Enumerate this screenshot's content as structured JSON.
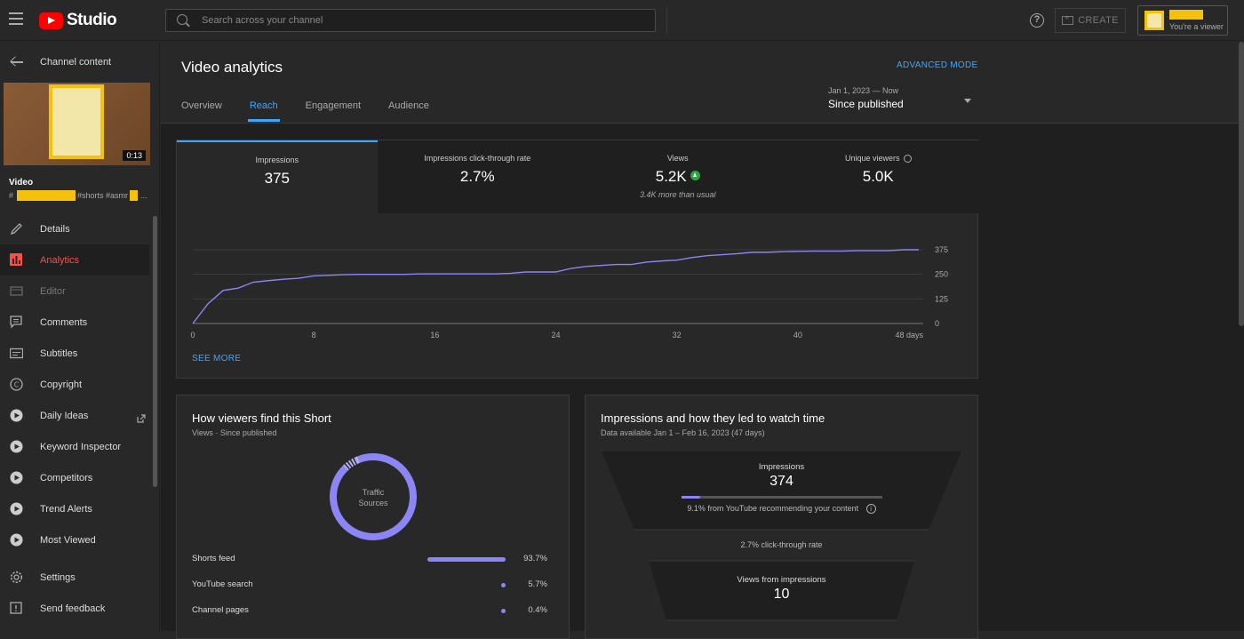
{
  "app": {
    "logo_text": "Studio",
    "search_placeholder": "Search across your channel",
    "create_label": "CREATE",
    "account_role": "You're a viewer"
  },
  "sidebar": {
    "back_label": "Channel content",
    "duration": "0:13",
    "video_label": "Video",
    "tags_a": "#",
    "tags_b": "#shorts #asmr",
    "tags_c": "...",
    "items": [
      {
        "label": "Details",
        "icon": "pencil-icon"
      },
      {
        "label": "Analytics",
        "icon": "analytics-icon"
      },
      {
        "label": "Editor",
        "icon": "film-icon"
      },
      {
        "label": "Comments",
        "icon": "comment-icon"
      },
      {
        "label": "Subtitles",
        "icon": "subtitles-icon"
      },
      {
        "label": "Copyright",
        "icon": "copyright-icon"
      },
      {
        "label": "Daily Ideas",
        "icon": "play-circle-icon"
      },
      {
        "label": "Keyword Inspector",
        "icon": "play-circle-icon"
      },
      {
        "label": "Competitors",
        "icon": "play-circle-icon"
      },
      {
        "label": "Trend Alerts",
        "icon": "play-circle-icon"
      },
      {
        "label": "Most Viewed",
        "icon": "play-circle-icon"
      },
      {
        "label": "Settings",
        "icon": "gear-icon"
      },
      {
        "label": "Send feedback",
        "icon": "feedback-icon"
      }
    ]
  },
  "main": {
    "title": "Video analytics",
    "advanced_mode": "ADVANCED MODE",
    "tabs": [
      "Overview",
      "Reach",
      "Engagement",
      "Audience"
    ],
    "active_tab": "Reach",
    "date_range": "Jan 1, 2023 — Now",
    "date_label": "Since published"
  },
  "kpis": [
    {
      "label": "Impressions",
      "value": "375"
    },
    {
      "label": "Impressions click-through rate",
      "value": "2.7%"
    },
    {
      "label": "Views",
      "value": "5.2K",
      "note": "3.4K more than usual"
    },
    {
      "label": "Unique viewers",
      "value": "5.0K"
    }
  ],
  "see_more": "SEE MORE",
  "chart_data": [
    {
      "type": "line",
      "x_tick_labels": [
        "0",
        "8",
        "16",
        "24",
        "32",
        "40",
        "48 days"
      ],
      "y_tick_labels": [
        "375",
        "250",
        "125",
        "0"
      ],
      "ylim": [
        0,
        375
      ],
      "xlim": [
        0,
        48
      ],
      "series": [
        {
          "x": [
            0,
            1,
            2,
            3,
            4,
            5,
            6,
            7,
            8,
            9,
            10,
            11,
            12,
            13,
            14,
            15,
            16,
            17,
            18,
            19,
            20,
            21,
            22,
            23,
            24,
            25,
            26,
            27,
            28,
            29,
            30,
            31,
            32,
            33,
            34,
            35,
            36,
            37,
            38,
            39,
            40,
            41,
            42,
            43,
            44,
            45,
            46,
            47,
            48
          ],
          "y": [
            0,
            100,
            168,
            180,
            210,
            218,
            225,
            230,
            242,
            245,
            248,
            250,
            250,
            250,
            250,
            252,
            252,
            252,
            252,
            252,
            252,
            255,
            262,
            262,
            262,
            280,
            290,
            295,
            300,
            300,
            312,
            318,
            322,
            335,
            345,
            350,
            355,
            362,
            362,
            365,
            367,
            368,
            368,
            368,
            370,
            370,
            370,
            375,
            375
          ]
        }
      ],
      "line_color": "#8b85f5",
      "grid": true
    },
    {
      "type": "pie",
      "center_label": "Traffic Sources",
      "categories": [
        "Shorts feed",
        "YouTube search",
        "Channel pages"
      ],
      "values": [
        93.7,
        5.7,
        0.4
      ]
    }
  ],
  "traffic": {
    "title": "How viewers find this Short",
    "subtitle": "Views · Since published",
    "rows": [
      {
        "label": "Shorts feed",
        "pct": "93.7%",
        "frac": 0.937
      },
      {
        "label": "YouTube search",
        "pct": "5.7%",
        "frac": 0.057
      },
      {
        "label": "Channel pages",
        "pct": "0.4%",
        "frac": 0.004
      }
    ]
  },
  "funnel": {
    "title": "Impressions and how they led to watch time",
    "subtitle": "Data available Jan 1 – Feb 16, 2023 (47 days)",
    "impressions_label": "Impressions",
    "impressions_value": "374",
    "impressions_frac": 0.091,
    "rec_text": "9.1% from YouTube recommending your content",
    "ctr_text": "2.7% click-through rate",
    "views_label": "Views from impressions",
    "views_value": "10"
  },
  "colors": {
    "accent_blue": "#3ea6ff",
    "accent_red": "#ff4e45",
    "series": "#8b85f5",
    "up_green": "#2ba640"
  }
}
